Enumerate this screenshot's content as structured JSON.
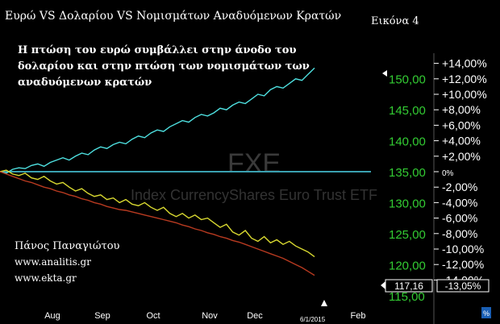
{
  "header": {
    "title": "Ευρώ VS Δολαρίου VS Νομισμάτων Αναδυόμενων Κρατών",
    "figure_label": "Εικόνα 4"
  },
  "annotation": {
    "lines": [
      "Η πτώση του ευρώ συμβάλλει στην άνοδο του",
      "δολαρίου και στην πτώση των νομισμάτων των",
      "αναδυόμενων κρατών"
    ]
  },
  "author": {
    "name": "Πάνος Παναγιώτου",
    "site1": "www.analitis.gr",
    "site2": "www.ekta.gr"
  },
  "watermark": {
    "symbol": "FXE",
    "name": "Index CurrencyShares Euro Trust ETF"
  },
  "colors": {
    "background": "#000000",
    "dollar_line": "#4ee0e0",
    "euro_line": "#d8d830",
    "emerging_line": "#b83a20",
    "reference_line": "#3aa0b0",
    "left_axis": "#33cc33",
    "right_axis": "#ffffff"
  },
  "chart_data": {
    "type": "line",
    "title": "Ευρώ VS Δολαρίου VS Νομισμάτων Αναδυόμενων Κρατών",
    "x_ticks": [
      "Aug",
      "Sep",
      "Oct",
      "Nov",
      "Dec",
      "Feb"
    ],
    "x_marker_label": "6/1/2015",
    "left_axis": {
      "ticks": [
        "150,00",
        "145,00",
        "140,00",
        "135,00",
        "130,00",
        "125,00",
        "120,00",
        "115,00"
      ],
      "ylim": [
        112,
        156
      ],
      "current_value": "117,16"
    },
    "right_axis": {
      "ticks": [
        "+14,00%",
        "+12,00%",
        "+10,00%",
        "+8,00%",
        "+6,00%",
        "+4,00%",
        "+2,00%",
        "0%",
        "-2,00%",
        "-4,00%",
        "-6,00%",
        "-8,00%",
        "-10,00%",
        "-12,00%",
        "-14,00%"
      ],
      "ylim": [
        -16,
        16
      ],
      "current_value": "-13,05%",
      "unit_button": "%"
    },
    "reference_level_percent": 0,
    "series": [
      {
        "color": "#4ee0e0",
        "values": [
          0,
          -0.2,
          0.3,
          0.5,
          0.4,
          0.8,
          1.0,
          0.7,
          1.2,
          1.5,
          1.8,
          1.5,
          2.0,
          2.4,
          2.2,
          2.8,
          3.2,
          3.0,
          3.5,
          3.8,
          3.6,
          4.2,
          4.6,
          4.4,
          5.0,
          5.4,
          5.2,
          5.8,
          6.2,
          6.6,
          6.4,
          7.0,
          7.4,
          7.2,
          7.6,
          8.2,
          8.0,
          8.6,
          9.0,
          8.8,
          9.4,
          10.0,
          9.8,
          10.6,
          11.0,
          10.8,
          11.4,
          12.0,
          11.8,
          12.6,
          13.4
        ]
      },
      {
        "color": "#d8d830",
        "values": [
          0,
          0.2,
          -0.3,
          -0.5,
          -0.2,
          -0.8,
          -1.0,
          -0.6,
          -1.2,
          -1.6,
          -1.4,
          -2.0,
          -2.5,
          -2.2,
          -2.8,
          -3.2,
          -3.0,
          -3.6,
          -3.4,
          -4.0,
          -3.6,
          -4.2,
          -4.4,
          -4.0,
          -4.6,
          -5.0,
          -4.6,
          -5.4,
          -5.8,
          -5.4,
          -6.0,
          -5.6,
          -6.2,
          -6.0,
          -6.6,
          -7.2,
          -6.8,
          -7.8,
          -8.2,
          -7.6,
          -8.6,
          -9.0,
          -8.4,
          -9.2,
          -8.8,
          -9.4,
          -9.0,
          -9.6,
          -10.0,
          -10.4,
          -11.0
        ]
      },
      {
        "color": "#b83a20",
        "values": [
          0,
          -0.3,
          -0.6,
          -0.9,
          -1.2,
          -1.4,
          -1.7,
          -2.0,
          -2.2,
          -2.5,
          -2.7,
          -3.0,
          -3.2,
          -3.5,
          -3.7,
          -4.0,
          -4.2,
          -4.5,
          -4.7,
          -4.9,
          -5.0,
          -5.2,
          -5.4,
          -5.6,
          -5.8,
          -6.0,
          -6.2,
          -6.4,
          -6.6,
          -6.9,
          -7.1,
          -7.4,
          -7.6,
          -7.9,
          -8.1,
          -8.4,
          -8.6,
          -8.9,
          -9.1,
          -9.4,
          -9.7,
          -10.0,
          -10.3,
          -10.6,
          -10.9,
          -11.2,
          -11.6,
          -12.0,
          -12.4,
          -12.9,
          -13.4
        ]
      }
    ]
  }
}
